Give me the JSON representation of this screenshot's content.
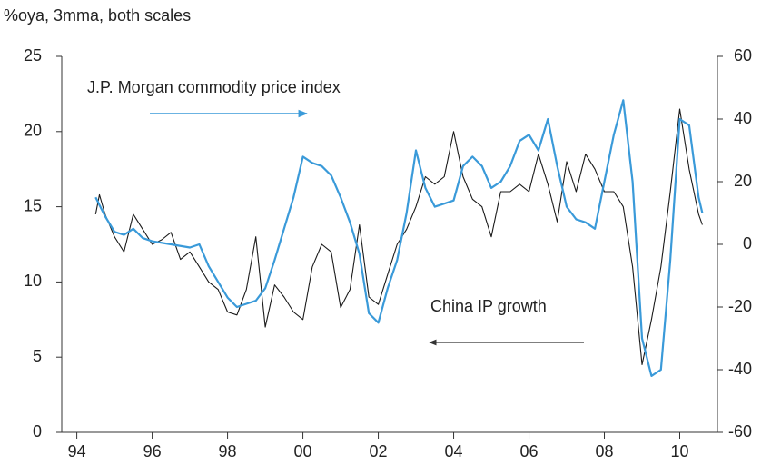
{
  "chart_data": {
    "type": "line",
    "title": "%oya, 3mma, both scales",
    "annotations": [
      "J.P. Morgan commodity price index",
      "China IP growth"
    ],
    "xlim": [
      1993.6,
      2011
    ],
    "xticks": [
      {
        "value": 1994,
        "label": "94"
      },
      {
        "value": 1996,
        "label": "96"
      },
      {
        "value": 1998,
        "label": "98"
      },
      {
        "value": 2000,
        "label": "00"
      },
      {
        "value": 2002,
        "label": "02"
      },
      {
        "value": 2004,
        "label": "04"
      },
      {
        "value": 2006,
        "label": "06"
      },
      {
        "value": 2008,
        "label": "08"
      },
      {
        "value": 2010,
        "label": "10"
      }
    ],
    "ylim": [
      0,
      25
    ],
    "yticks": [
      0,
      5,
      10,
      15,
      20,
      25
    ],
    "y2lim": [
      -60,
      60
    ],
    "y2ticks": [
      -60,
      -40,
      -20,
      0,
      20,
      40,
      60
    ],
    "series": [
      {
        "name": "China IP growth",
        "color": "#1a1a1a",
        "axis": "y",
        "x": [
          1994.5,
          1994.6,
          1994.75,
          1995,
          1995.25,
          1995.5,
          1995.75,
          1996,
          1996.25,
          1996.5,
          1996.75,
          1997,
          1997.25,
          1997.5,
          1997.75,
          1998,
          1998.25,
          1998.5,
          1998.75,
          1999,
          1999.25,
          1999.5,
          1999.75,
          2000,
          2000.25,
          2000.5,
          2000.75,
          2001,
          2001.25,
          2001.5,
          2001.75,
          2002,
          2002.25,
          2002.5,
          2002.75,
          2003,
          2003.25,
          2003.5,
          2003.75,
          2004,
          2004.25,
          2004.5,
          2004.75,
          2005,
          2005.25,
          2005.5,
          2005.75,
          2006,
          2006.25,
          2006.5,
          2006.75,
          2007,
          2007.25,
          2007.5,
          2007.75,
          2008,
          2008.25,
          2008.5,
          2008.75,
          2009,
          2009.25,
          2009.5,
          2009.75,
          2010,
          2010.25,
          2010.5,
          2010.6
        ],
        "values": [
          14.5,
          15.8,
          14.5,
          13,
          12,
          14.5,
          13.5,
          12.5,
          12.8,
          13.3,
          11.5,
          12,
          11,
          10,
          9.5,
          8,
          7.8,
          9.5,
          13,
          7,
          9.8,
          9,
          8,
          7.5,
          11,
          12.5,
          12,
          8.3,
          9.5,
          13.8,
          9,
          8.5,
          10.5,
          12.5,
          13.5,
          15,
          17,
          16.5,
          17,
          20,
          17,
          15.5,
          15,
          13,
          16,
          16,
          16.5,
          16,
          18.5,
          16.5,
          14,
          18,
          16,
          18.5,
          17.5,
          16,
          16,
          15,
          11,
          4.5,
          7.5,
          11,
          16,
          21.5,
          17.5,
          14.5,
          13.8
        ]
      },
      {
        "name": "J.P. Morgan commodity price index",
        "color": "#3a9ad9",
        "axis": "y2",
        "x": [
          1994.5,
          1994.75,
          1995,
          1995.25,
          1995.5,
          1995.75,
          1996,
          1996.5,
          1997,
          1997.25,
          1997.5,
          1998,
          1998.25,
          1998.5,
          1998.75,
          1999,
          1999.25,
          1999.5,
          1999.75,
          2000,
          2000.25,
          2000.5,
          2000.75,
          2001,
          2001.25,
          2001.5,
          2001.75,
          2002,
          2002.25,
          2002.5,
          2002.75,
          2003,
          2003.25,
          2003.5,
          2003.75,
          2004,
          2004.25,
          2004.5,
          2004.75,
          2005,
          2005.25,
          2005.5,
          2005.75,
          2006,
          2006.25,
          2006.5,
          2006.75,
          2007,
          2007.25,
          2007.5,
          2007.75,
          2008,
          2008.25,
          2008.5,
          2008.75,
          2009,
          2009.25,
          2009.5,
          2009.75,
          2010,
          2010.25,
          2010.5,
          2010.6
        ],
        "values": [
          15,
          9,
          4,
          3,
          5,
          2,
          1,
          0,
          -1,
          0,
          -7,
          -17,
          -20,
          -19,
          -18,
          -14,
          -5,
          5,
          15,
          28,
          26,
          25,
          22,
          15,
          7,
          -3,
          -22,
          -25,
          -14,
          -5,
          10,
          30,
          18,
          12,
          13,
          14,
          25,
          28,
          25,
          18,
          20,
          25,
          33,
          35,
          30,
          40,
          25,
          12,
          8,
          7,
          5,
          20,
          35,
          46,
          20,
          -30,
          -42,
          -40,
          -5,
          40,
          38,
          15,
          10
        ]
      }
    ]
  }
}
